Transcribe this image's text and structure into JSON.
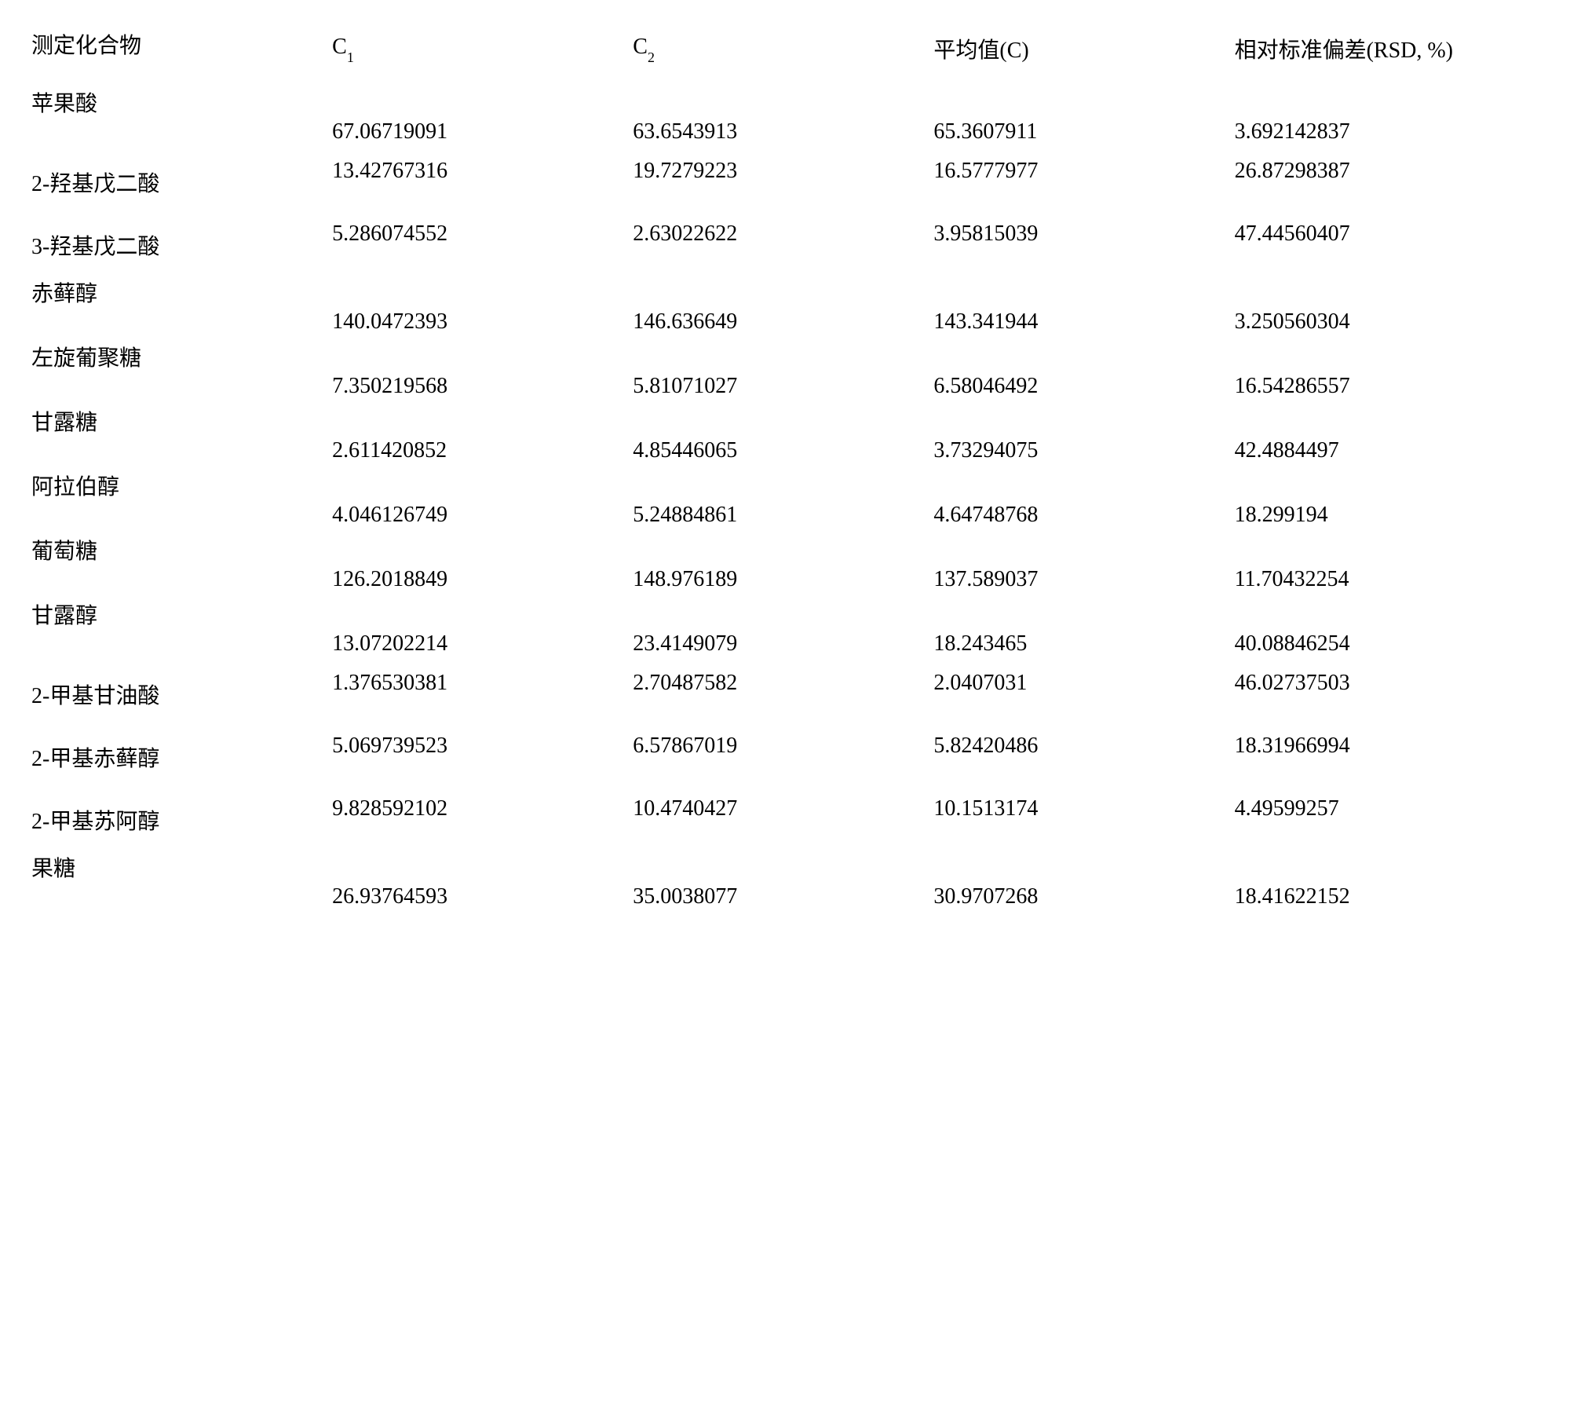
{
  "table": {
    "columns": {
      "compound": "测定化合物",
      "c1_prefix": "C",
      "c1_sub": "1",
      "c2_prefix": "C",
      "c2_sub": "2",
      "avg": "平均值(C)",
      "rsd": "相对标准偏差(RSD, %)"
    },
    "rows": [
      {
        "compound": "苹果酸",
        "c1": "67.06719091",
        "c2": "63.6543913",
        "avg": "65.3607911",
        "rsd": "3.692142837",
        "style": "normal"
      },
      {
        "compound": "2-羟基戊二酸",
        "c1": "13.42767316",
        "c2": "19.7279223",
        "avg": "16.5777977",
        "rsd": "26.87298387",
        "style": "tight"
      },
      {
        "compound": "3-羟基戊二酸",
        "c1": "5.286074552",
        "c2": "2.63022622",
        "avg": "3.95815039",
        "rsd": "47.44560407",
        "style": "tight"
      },
      {
        "compound": "赤藓醇",
        "c1": "140.0472393",
        "c2": "146.636649",
        "avg": "143.341944",
        "rsd": "3.250560304",
        "style": "normal"
      },
      {
        "compound": "左旋葡聚糖",
        "c1": "7.350219568",
        "c2": "5.81071027",
        "avg": "6.58046492",
        "rsd": "16.54286557",
        "style": "normal"
      },
      {
        "compound": "甘露糖",
        "c1": "2.611420852",
        "c2": "4.85446065",
        "avg": "3.73294075",
        "rsd": "42.4884497",
        "style": "normal"
      },
      {
        "compound": "阿拉伯醇",
        "c1": "4.046126749",
        "c2": "5.24884861",
        "avg": "4.64748768",
        "rsd": "18.299194",
        "style": "normal"
      },
      {
        "compound": "葡萄糖",
        "c1": "126.2018849",
        "c2": "148.976189",
        "avg": "137.589037",
        "rsd": "11.70432254",
        "style": "normal"
      },
      {
        "compound": "甘露醇",
        "c1": "13.07202214",
        "c2": "23.4149079",
        "avg": "18.243465",
        "rsd": "40.08846254",
        "style": "normal"
      },
      {
        "compound": "2-甲基甘油酸",
        "c1": "1.376530381",
        "c2": "2.70487582",
        "avg": "2.0407031",
        "rsd": "46.02737503",
        "style": "tight"
      },
      {
        "compound": "2-甲基赤藓醇",
        "c1": "5.069739523",
        "c2": "6.57867019",
        "avg": "5.82420486",
        "rsd": "18.31966994",
        "style": "tight"
      },
      {
        "compound": "2-甲基苏阿醇",
        "c1": "9.828592102",
        "c2": "10.4740427",
        "avg": "10.1513174",
        "rsd": "4.49599257",
        "style": "tight"
      },
      {
        "compound": "果糖",
        "c1": "26.93764593",
        "c2": "35.0038077",
        "avg": "30.9707268",
        "rsd": "18.41622152",
        "style": "normal"
      }
    ],
    "styling": {
      "font_family": "SimSun",
      "font_size": 28,
      "sub_font_size": 18,
      "text_color": "#000000",
      "background_color": "#ffffff",
      "column_widths_pct": [
        21,
        21,
        21,
        21,
        22
      ]
    }
  }
}
